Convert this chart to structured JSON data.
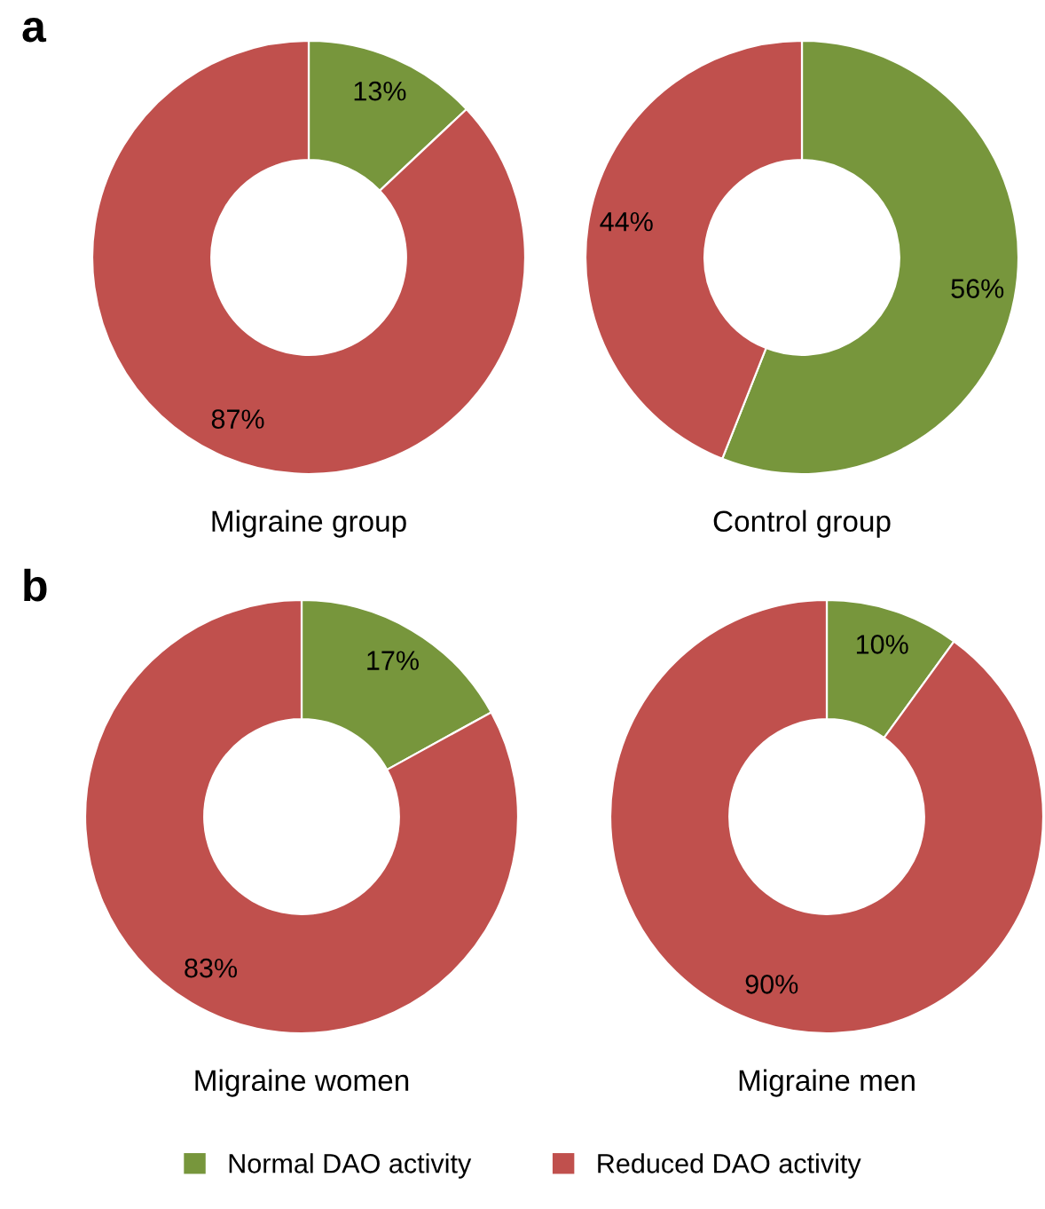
{
  "chart_data": [
    {
      "type": "donut",
      "xlabel": "Migraine group",
      "annotations": [
        "a"
      ],
      "legend": "bottom",
      "categories": [
        "Normal DAO activity",
        "Reduced DAO activity"
      ],
      "values": [
        13,
        87
      ],
      "colors": [
        "#77963c",
        "#c0504d"
      ],
      "value_labels": [
        "13%",
        "87%"
      ]
    },
    {
      "type": "donut",
      "xlabel": "Control group",
      "categories": [
        null,
        null
      ],
      "values": [
        56,
        44
      ],
      "colors": [
        "#77963c",
        "#c0504d"
      ],
      "value_labels": [
        "56%",
        "44%"
      ]
    },
    {
      "type": "donut",
      "xlabel": "Migraine women",
      "annotations": [
        "b"
      ],
      "categories": [
        null,
        null
      ],
      "values": [
        17,
        83
      ],
      "colors": [
        "#77963c",
        "#c0504d"
      ],
      "value_labels": [
        "17%",
        "83%"
      ]
    },
    {
      "type": "donut",
      "xlabel": "Migraine men",
      "categories": [
        null,
        null
      ],
      "values": [
        10,
        90
      ],
      "colors": [
        "#77963c",
        "#c0504d"
      ],
      "value_labels": [
        "10%",
        "90%"
      ]
    }
  ]
}
